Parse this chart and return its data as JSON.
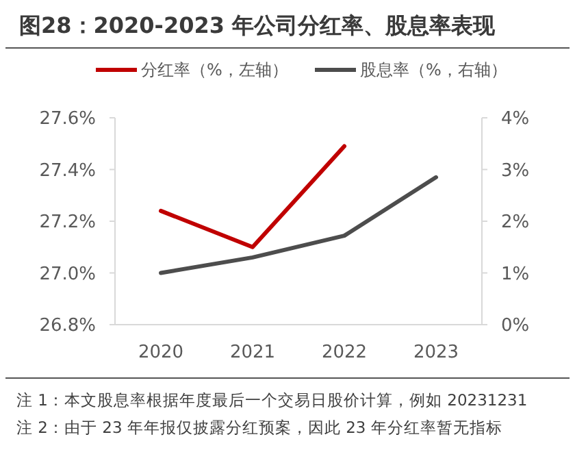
{
  "chart_data": {
    "type": "line",
    "title": "图28：2020-2023 年公司分红率、股息率表现",
    "categories": [
      "2020",
      "2021",
      "2022",
      "2023"
    ],
    "series": [
      {
        "name": "分红率（%，左轴）",
        "color": "#c00000",
        "values": [
          27.24,
          27.1,
          27.49,
          null
        ]
      },
      {
        "name": "股息率（%，右轴）",
        "color": "#4d4d4d",
        "values": [
          1.0,
          1.3,
          1.72,
          2.85
        ],
        "axis": "y2"
      }
    ],
    "ylim": [
      26.8,
      27.6
    ],
    "yticks": [
      {
        "value": 26.8,
        "label": "26.8%"
      },
      {
        "value": 27.0,
        "label": "27.0%"
      },
      {
        "value": 27.2,
        "label": "27.2%"
      },
      {
        "value": 27.4,
        "label": "27.4%"
      },
      {
        "value": 27.6,
        "label": "27.6%"
      }
    ],
    "y2lim": [
      0,
      4
    ],
    "y2ticks": [
      {
        "value": 0,
        "label": "0%"
      },
      {
        "value": 1,
        "label": "1%"
      },
      {
        "value": 2,
        "label": "2%"
      },
      {
        "value": 3,
        "label": "3%"
      },
      {
        "value": 4,
        "label": "4%"
      }
    ],
    "legend": "top",
    "marker": "none",
    "line_style": "solid",
    "annotations": [
      "注 1：本文股息率根据年度最后一个交易日股价计算，例如 20231231",
      "注 2：由于 23 年年报仅披露分红预案，因此 23 年分红率暂无指标"
    ]
  }
}
